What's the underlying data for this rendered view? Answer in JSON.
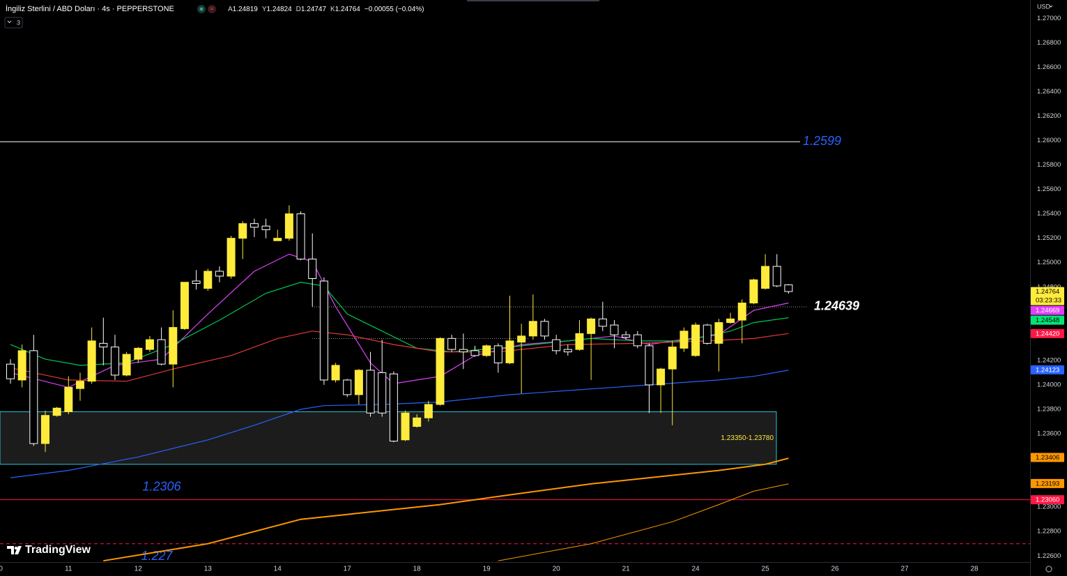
{
  "header": {
    "title": "İngiliz Sterlini / ABD Doları · 4s · PEPPERSTONE",
    "ohlc_keys": [
      "A",
      "Y",
      "D",
      "K"
    ],
    "change": "−0.00055 (−0.04%)",
    "indicator_count": "3",
    "currency": "USD",
    "logo": "TradingView"
  },
  "chart_data": {
    "type": "candlestick",
    "xlim": [
      -0.9,
      87.8
    ],
    "xticks": [
      {
        "value": -1,
        "label": "10"
      },
      {
        "value": 5,
        "label": "11"
      },
      {
        "value": 11,
        "label": "12"
      },
      {
        "value": 17,
        "label": "13"
      },
      {
        "value": 23,
        "label": "14"
      },
      {
        "value": 29,
        "label": "17"
      },
      {
        "value": 35,
        "label": "18"
      },
      {
        "value": 41,
        "label": "19"
      },
      {
        "value": 47,
        "label": "20"
      },
      {
        "value": 53,
        "label": "21"
      },
      {
        "value": 59,
        "label": "24"
      },
      {
        "value": 65,
        "label": "25"
      },
      {
        "value": 71,
        "label": "26"
      },
      {
        "value": 77,
        "label": "27"
      },
      {
        "value": 83,
        "label": "28"
      }
    ],
    "ylim": [
      1.2255,
      1.2715
    ],
    "yticks": [
      {
        "value": 1.27,
        "label": "1.27000"
      },
      {
        "value": 1.268,
        "label": "1.26800"
      },
      {
        "value": 1.266,
        "label": "1.26600"
      },
      {
        "value": 1.264,
        "label": "1.26400"
      },
      {
        "value": 1.262,
        "label": "1.26200"
      },
      {
        "value": 1.26,
        "label": "1.26000"
      },
      {
        "value": 1.258,
        "label": "1.25800"
      },
      {
        "value": 1.256,
        "label": "1.25600"
      },
      {
        "value": 1.254,
        "label": "1.25400"
      },
      {
        "value": 1.252,
        "label": "1.25200"
      },
      {
        "value": 1.25,
        "label": "1.25000"
      },
      {
        "value": 1.248,
        "label": "1.24800"
      },
      {
        "value": 1.246,
        "label": "1.24600"
      },
      {
        "value": 1.244,
        "label": "1.24400"
      },
      {
        "value": 1.242,
        "label": "1.24200"
      },
      {
        "value": 1.24,
        "label": "1.24000"
      },
      {
        "value": 1.238,
        "label": "1.23800"
      },
      {
        "value": 1.236,
        "label": "1.23600"
      },
      {
        "value": 1.234,
        "label": "1.23400"
      },
      {
        "value": 1.232,
        "label": "1.23200"
      },
      {
        "value": 1.23,
        "label": "1.23000"
      },
      {
        "value": 1.228,
        "label": "1.22800"
      },
      {
        "value": 1.226,
        "label": "1.22600"
      }
    ],
    "grid": false,
    "up_color": "#ffeb3b",
    "down_color": "#ffffff",
    "candles": {
      "x": [
        0,
        1,
        2,
        3,
        4,
        5,
        6,
        7,
        8,
        9,
        10,
        11,
        12,
        13,
        14,
        15,
        16,
        17,
        18,
        19,
        20,
        21,
        22,
        23,
        24,
        25,
        26,
        27,
        28,
        29,
        30,
        31,
        32,
        33,
        34,
        35,
        36,
        37,
        38,
        39,
        40,
        41,
        42,
        43,
        44,
        45,
        46,
        47,
        48,
        49,
        50,
        51,
        52,
        53,
        54,
        55,
        56,
        57,
        58,
        59,
        60,
        61,
        62,
        63,
        64,
        65,
        66,
        67
      ],
      "open": [
        1.2417,
        1.2404,
        1.2428,
        1.2352,
        1.2375,
        1.2378,
        1.2397,
        1.2403,
        1.2434,
        1.2431,
        1.2408,
        1.2421,
        1.2429,
        1.2437,
        1.2417,
        1.2446,
        1.2485,
        1.2479,
        1.2493,
        1.2489,
        1.252,
        1.2532,
        1.253,
        1.2518,
        1.252,
        1.254,
        1.2503,
        1.2485,
        1.2404,
        1.2404,
        1.2392,
        1.2412,
        1.241,
        1.2409,
        1.2355,
        1.2366,
        1.2373,
        1.2384,
        1.2438,
        1.2429,
        1.2428,
        1.2424,
        1.2432,
        1.2418,
        1.2435,
        1.244,
        1.2452,
        1.2437,
        1.2429,
        1.2429,
        1.2442,
        1.2454,
        1.2449,
        1.2441,
        1.2441,
        1.2432,
        1.24,
        1.2413,
        1.243,
        1.2424,
        1.2449,
        1.2434,
        1.2451,
        1.2453,
        1.2467,
        1.2479,
        1.2497,
        1.24819
      ],
      "high": [
        1.2421,
        1.2433,
        1.2441,
        1.2379,
        1.2382,
        1.2407,
        1.241,
        1.2447,
        1.2455,
        1.2441,
        1.2427,
        1.2431,
        1.244,
        1.2447,
        1.2461,
        1.2484,
        1.2494,
        1.2495,
        1.2497,
        1.2522,
        1.2534,
        1.2536,
        1.2536,
        1.2527,
        1.2547,
        1.2542,
        1.2524,
        1.2488,
        1.2418,
        1.2405,
        1.2413,
        1.2427,
        1.2437,
        1.2411,
        1.2379,
        1.2376,
        1.2387,
        1.2439,
        1.2441,
        1.2442,
        1.2432,
        1.2433,
        1.2434,
        1.2473,
        1.245,
        1.2474,
        1.2454,
        1.2441,
        1.2433,
        1.2453,
        1.2455,
        1.2468,
        1.2453,
        1.2444,
        1.2444,
        1.2434,
        1.2414,
        1.2436,
        1.2447,
        1.2451,
        1.245,
        1.2454,
        1.2459,
        1.247,
        1.2487,
        1.2507,
        1.2507,
        1.24824
      ],
      "low": [
        1.2401,
        1.2398,
        1.235,
        1.2345,
        1.2374,
        1.2376,
        1.2387,
        1.2401,
        1.2416,
        1.2404,
        1.2407,
        1.2418,
        1.2427,
        1.2416,
        1.2398,
        1.2445,
        1.2478,
        1.2477,
        1.2484,
        1.2487,
        1.2503,
        1.2521,
        1.252,
        1.2518,
        1.2518,
        1.2502,
        1.2464,
        1.24,
        1.2402,
        1.239,
        1.2384,
        1.2374,
        1.2374,
        1.2353,
        1.2354,
        1.2365,
        1.237,
        1.2383,
        1.2427,
        1.2413,
        1.2423,
        1.2423,
        1.241,
        1.2417,
        1.2393,
        1.2437,
        1.2437,
        1.2425,
        1.2424,
        1.2428,
        1.2404,
        1.2444,
        1.243,
        1.2437,
        1.243,
        1.2377,
        1.2377,
        1.2367,
        1.2427,
        1.2423,
        1.2433,
        1.2411,
        1.245,
        1.2434,
        1.2466,
        1.2478,
        1.248,
        1.24747
      ],
      "close": [
        1.2405,
        1.2428,
        1.2352,
        1.2375,
        1.2381,
        1.2398,
        1.2403,
        1.2436,
        1.2431,
        1.2408,
        1.2425,
        1.243,
        1.2437,
        1.2417,
        1.2447,
        1.2484,
        1.2483,
        1.2493,
        1.2489,
        1.252,
        1.2532,
        1.2529,
        1.2527,
        1.252,
        1.254,
        1.2503,
        1.2487,
        1.2404,
        1.2416,
        1.2392,
        1.2412,
        1.2377,
        1.2377,
        1.2354,
        1.2377,
        1.2373,
        1.2384,
        1.2438,
        1.2429,
        1.2427,
        1.2424,
        1.2432,
        1.2418,
        1.2436,
        1.244,
        1.2452,
        1.244,
        1.2428,
        1.2427,
        1.2442,
        1.2454,
        1.2448,
        1.2441,
        1.2439,
        1.2432,
        1.24,
        1.2413,
        1.2431,
        1.2444,
        1.2449,
        1.2434,
        1.2451,
        1.2454,
        1.2467,
        1.2486,
        1.2497,
        1.2481,
        1.24764
      ]
    },
    "lines": [
      {
        "color": "#e040fb",
        "width": 1.2,
        "x": [
          0,
          5,
          9,
          13,
          17,
          21,
          24,
          26,
          28,
          31,
          33,
          35,
          37,
          40,
          44,
          48,
          52,
          55,
          57,
          61,
          64,
          67
        ],
        "values": [
          1.241,
          1.2398,
          1.2416,
          1.2421,
          1.2458,
          1.2493,
          1.2507,
          1.2501,
          1.2464,
          1.2418,
          1.2401,
          1.2404,
          1.2407,
          1.2424,
          1.2433,
          1.2436,
          1.244,
          1.2433,
          1.2436,
          1.2441,
          1.2461,
          1.2467
        ]
      },
      {
        "color": "#00c853",
        "width": 1.2,
        "x": [
          0,
          3,
          6,
          10,
          14,
          18,
          22,
          25,
          27,
          29,
          32,
          35,
          38,
          42,
          46,
          50,
          54,
          58,
          62,
          64,
          67
        ],
        "values": [
          1.2433,
          1.2421,
          1.2416,
          1.2418,
          1.2433,
          1.2453,
          1.2475,
          1.2484,
          1.2481,
          1.2458,
          1.2444,
          1.243,
          1.2427,
          1.243,
          1.2434,
          1.2438,
          1.2436,
          1.2436,
          1.2444,
          1.2451,
          1.2455
        ]
      },
      {
        "color": "#e53935",
        "width": 1.2,
        "x": [
          0,
          5,
          10,
          14,
          19,
          23,
          26,
          29,
          33,
          37,
          42,
          48,
          54,
          60,
          64,
          67
        ],
        "values": [
          1.2414,
          1.2404,
          1.2403,
          1.2413,
          1.2424,
          1.2438,
          1.2444,
          1.2441,
          1.2433,
          1.2427,
          1.2427,
          1.2433,
          1.2434,
          1.2436,
          1.2438,
          1.2442
        ]
      },
      {
        "color": "#2962ff",
        "width": 1.2,
        "x": [
          0,
          5,
          11,
          17,
          21,
          25,
          27,
          32,
          37,
          43,
          49,
          55,
          61,
          64,
          67
        ],
        "values": [
          1.2324,
          1.233,
          1.2341,
          1.2355,
          1.2367,
          1.238,
          1.2383,
          1.2384,
          1.2386,
          1.2392,
          1.2396,
          1.24,
          1.2404,
          1.2407,
          1.2412
        ]
      },
      {
        "color": "#ff9800",
        "width": 2,
        "x": [
          8,
          17,
          25,
          29,
          37,
          43,
          50,
          55,
          61,
          65,
          67
        ],
        "values": [
          1.2256,
          1.227,
          1.229,
          1.2294,
          1.2302,
          1.231,
          1.2319,
          1.2324,
          1.233,
          1.2335,
          1.234
        ]
      },
      {
        "color": "#ff9800",
        "width": 1,
        "x": [
          42,
          50,
          57,
          61,
          64,
          67
        ],
        "values": [
          1.2256,
          1.227,
          1.2288,
          1.2302,
          1.2313,
          1.2319
        ]
      }
    ],
    "hlines": [
      {
        "value": 1.2599,
        "color": "#ffffff",
        "style": "solid",
        "label_color": "#2962ff"
      },
      {
        "value": 1.2306,
        "color": "#ff1744",
        "style": "solid",
        "label_color": "#2962ff"
      },
      {
        "value": 1.227,
        "color": "#ff1744",
        "style": "dashed",
        "label_color": "#2962ff"
      },
      {
        "value": 1.24639,
        "color": "#9e9e9e",
        "style": "dotted",
        "label_color": "#ffffff"
      },
      {
        "value": 1.2438,
        "color": "#9e9e9e",
        "style": "dotted"
      }
    ],
    "zone": {
      "low": 1.2335,
      "high": 1.2378,
      "label": "1.23350-1.23780",
      "color": "#26c6da",
      "label_color": "#ffeb3b"
    },
    "price_tags": [
      {
        "price": 1.24764,
        "color": "#ffeb3b",
        "text_color": "#000000",
        "countdown": "03:23:33"
      },
      {
        "price": 1.24669,
        "color": "#e040fb",
        "text_color": "#ffffff"
      },
      {
        "price": 1.24548,
        "color": "#00e676",
        "text_color": "#000000"
      },
      {
        "price": {
          "value": 1.2442,
          "label": "1.24420"
        },
        "color": "#ff1744",
        "text_color": "#ffffff"
      },
      {
        "price": 1.24123,
        "color": "#2962ff",
        "text_color": "#ffffff"
      },
      {
        "price": 1.23406,
        "color": "#ff9800",
        "text_color": "#000000"
      },
      {
        "price": 1.23193,
        "color": "#ff9800",
        "text_color": "#000000"
      },
      {
        "price": {
          "value": 1.2306,
          "label": "1.23060"
        },
        "color": "#ff1744",
        "text_color": "#ffffff"
      }
    ]
  }
}
